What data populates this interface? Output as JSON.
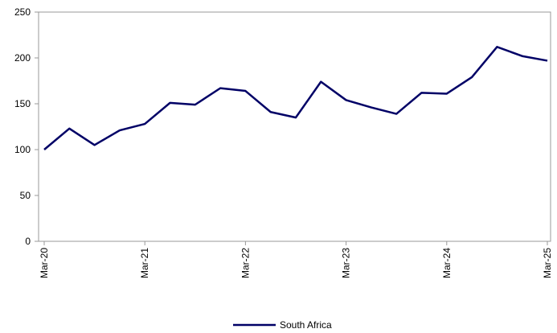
{
  "chart_data": {
    "type": "line",
    "categories": [
      "Mar-20",
      null,
      null,
      null,
      "Mar-21",
      null,
      null,
      null,
      "Mar-22",
      null,
      null,
      null,
      "Mar-23",
      null,
      null,
      null,
      "Mar-24",
      null,
      null,
      null,
      "Mar-25"
    ],
    "series": [
      {
        "name": "South Africa",
        "color": "#000066",
        "values": [
          100,
          123,
          105,
          121,
          128,
          151,
          149,
          167,
          164,
          141,
          135,
          174,
          154,
          146,
          139,
          162,
          161,
          179,
          212,
          202,
          197
        ]
      }
    ],
    "ylim": [
      0,
      250
    ],
    "yticks": [
      0,
      50,
      100,
      150,
      200,
      250
    ],
    "legend": "bottom"
  }
}
